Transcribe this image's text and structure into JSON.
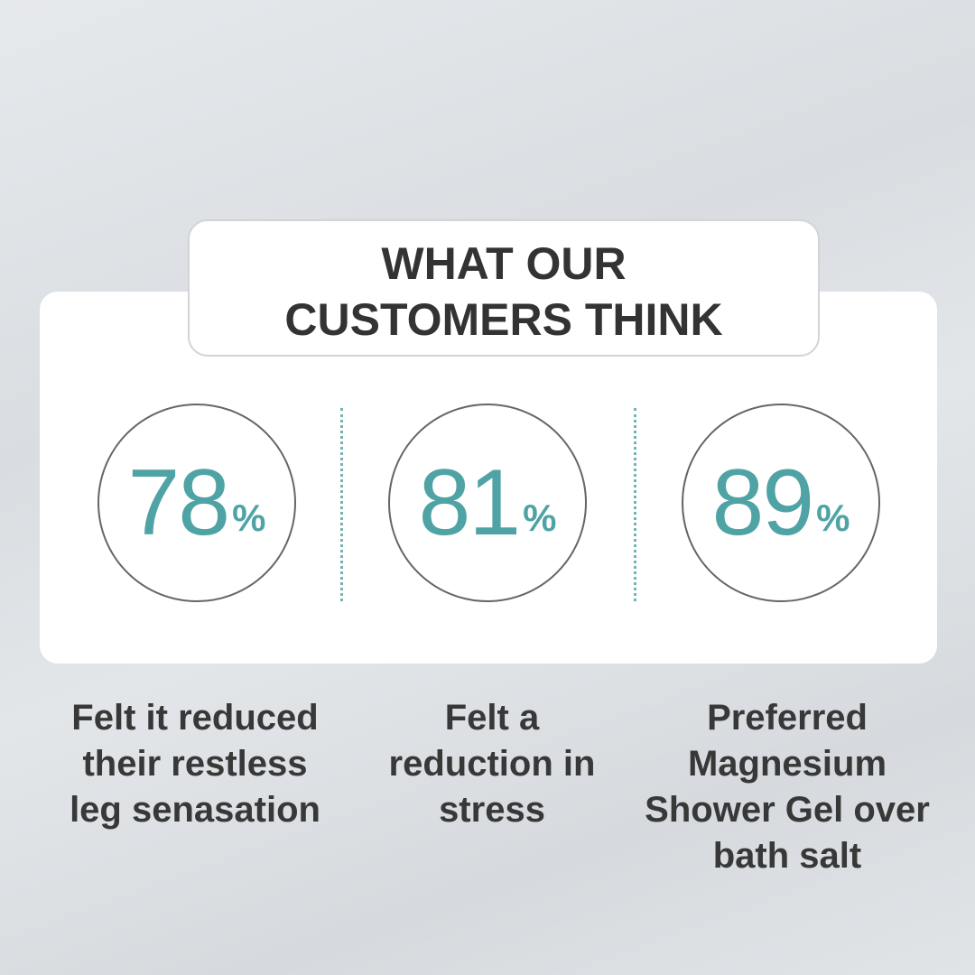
{
  "header": {
    "title_lines": [
      "WHAT OUR",
      "CUSTOMERS THINK"
    ]
  },
  "stats": [
    {
      "value": 78,
      "unit": "%",
      "label_lines": [
        "Felt it reduced",
        "their restless",
        "leg senasation"
      ]
    },
    {
      "value": 81,
      "unit": "%",
      "label_lines": [
        "Felt a",
        "reduction in",
        "stress"
      ]
    },
    {
      "value": 89,
      "unit": "%",
      "label_lines": [
        "Preferred",
        "Magnesium",
        "Shower Gel over",
        "bath salt"
      ]
    }
  ]
}
